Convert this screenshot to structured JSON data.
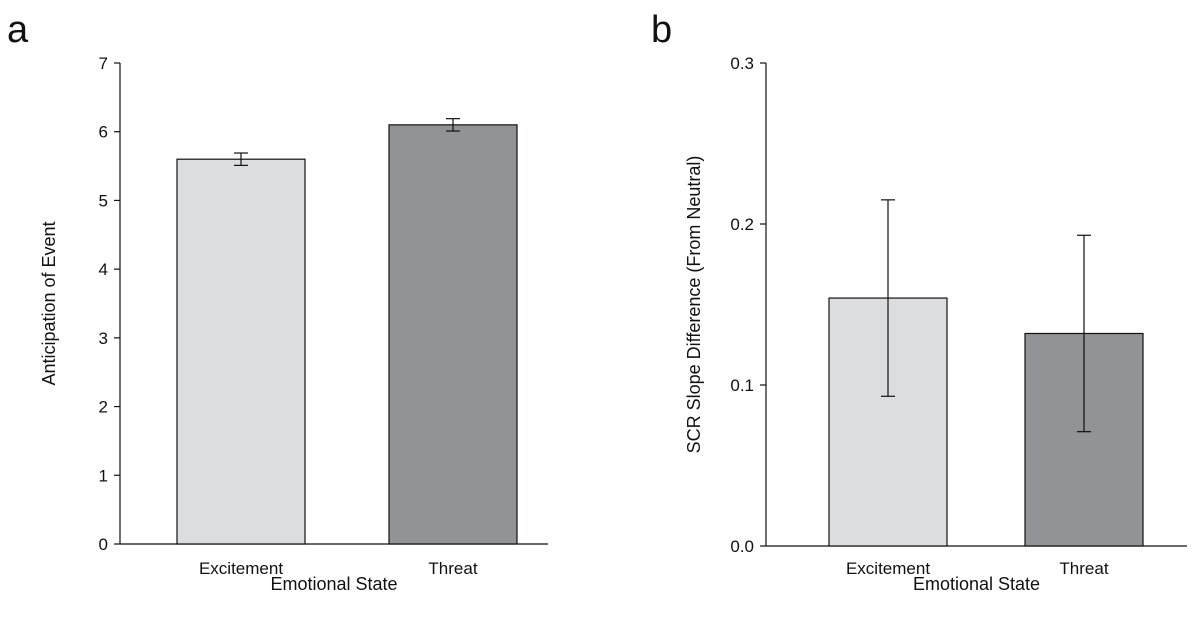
{
  "chart_data": [
    {
      "panel_label": "a",
      "type": "bar",
      "categories": [
        "Excitement",
        "Threat"
      ],
      "values": [
        5.6,
        6.1
      ],
      "error": [
        0.09,
        0.09
      ],
      "colors": [
        "#dcdddf",
        "#929396"
      ],
      "title": "",
      "xlabel": "Emotional State",
      "ylabel": "Anticipation of Event",
      "ylim": [
        0,
        7
      ],
      "yticks": [
        0,
        1,
        2,
        3,
        4,
        5,
        6,
        7
      ],
      "ytick_labels": [
        "0",
        "1",
        "2",
        "3",
        "4",
        "5",
        "6",
        "7"
      ],
      "grid": false,
      "legend": "none"
    },
    {
      "panel_label": "b",
      "type": "bar",
      "categories": [
        "Excitement",
        "Threat"
      ],
      "values": [
        0.154,
        0.132
      ],
      "error": [
        0.061,
        0.061
      ],
      "colors": [
        "#dcdddf",
        "#929396"
      ],
      "title": "",
      "xlabel": "Emotional State",
      "ylabel": "SCR Slope Difference (From Neutral)",
      "ylim": [
        0,
        0.3
      ],
      "yticks": [
        0,
        0.1,
        0.2,
        0.3
      ],
      "ytick_labels": [
        "0.0",
        "0.1",
        "0.2",
        "0.3"
      ],
      "grid": false,
      "legend": "none"
    }
  ]
}
